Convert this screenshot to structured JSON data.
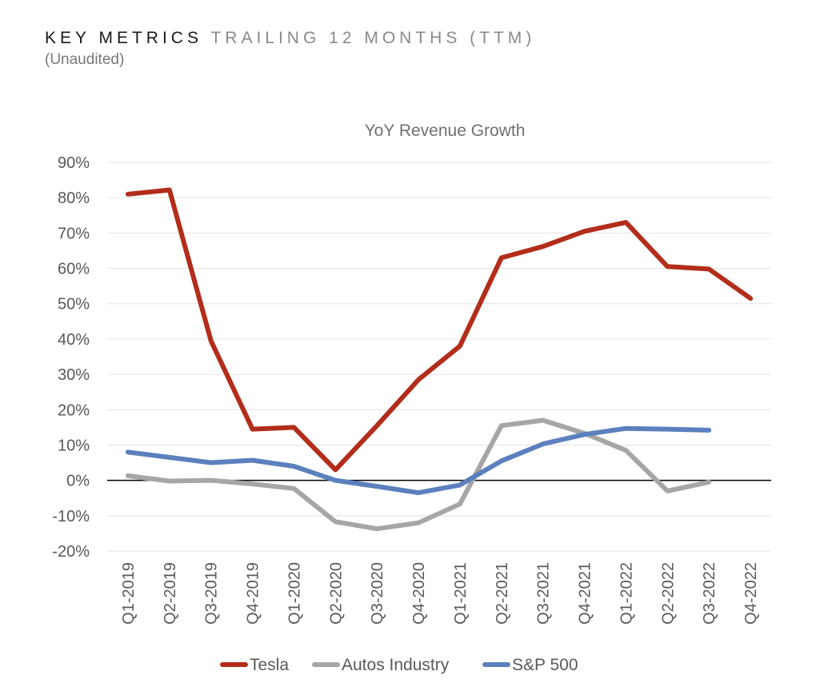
{
  "header": {
    "title_main": "KEY METRICS",
    "title_sub": "TRAILING 12 MONTHS (TTM)",
    "note": "(Unaudited)"
  },
  "chart_data": {
    "type": "line",
    "title": "YoY Revenue Growth",
    "xlabel": "",
    "ylabel": "",
    "ylim": [
      -20,
      90
    ],
    "yticks": [
      -20,
      -10,
      0,
      10,
      20,
      30,
      40,
      50,
      60,
      70,
      80,
      90
    ],
    "ytick_labels": [
      "-20%",
      "-10%",
      "0%",
      "10%",
      "20%",
      "30%",
      "40%",
      "50%",
      "60%",
      "70%",
      "80%",
      "90%"
    ],
    "grid": true,
    "legend": "bottom",
    "categories": [
      "Q1-2019",
      "Q2-2019",
      "Q3-2019",
      "Q4-2019",
      "Q1-2020",
      "Q2-2020",
      "Q3-2020",
      "Q4-2020",
      "Q1-2021",
      "Q2-2021",
      "Q3-2021",
      "Q4-2021",
      "Q1-2022",
      "Q2-2022",
      "Q3-2022",
      "Q4-2022"
    ],
    "series": [
      {
        "name": "Tesla",
        "color": "#b22d1b",
        "values": [
          81,
          82.2,
          39.5,
          14.5,
          15,
          3,
          15.5,
          28.5,
          38,
          63,
          66.2,
          70.5,
          73,
          60.5,
          59.8,
          51.5
        ]
      },
      {
        "name": "Autos Industry",
        "color": "#a6a6a6",
        "values": [
          1.3,
          -0.2,
          0,
          -1,
          -2.3,
          -11.7,
          -13.7,
          -12,
          -6.7,
          15.5,
          17,
          13.3,
          8.5,
          -3,
          -0.5,
          null
        ]
      },
      {
        "name": "S&P 500",
        "color": "#5b80bd",
        "values": [
          8,
          6.5,
          5,
          5.7,
          4,
          0,
          -1.7,
          -3.5,
          -1.3,
          5.5,
          10.3,
          13,
          14.7,
          14.5,
          14.2,
          null
        ]
      }
    ]
  }
}
